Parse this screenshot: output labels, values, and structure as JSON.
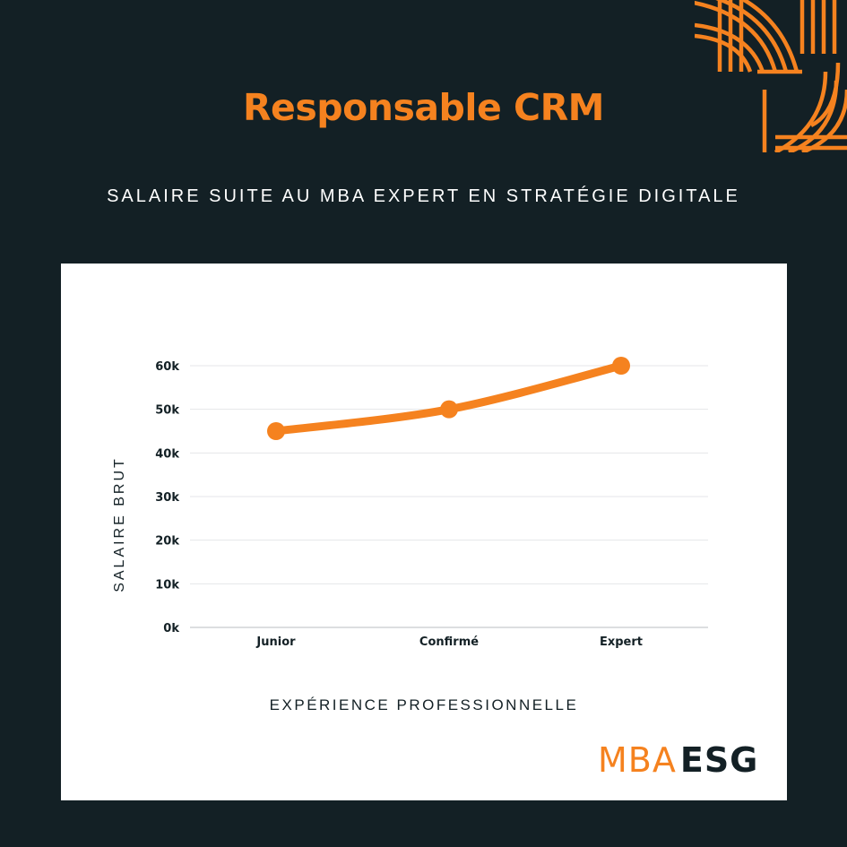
{
  "colors": {
    "background": "#132025",
    "accent": "#f5821f",
    "card": "#ffffff",
    "text_dark": "#132025",
    "grid": "#e4e6e8"
  },
  "header": {
    "title": "Responsable CRM",
    "subtitle": "SALAIRE SUITE AU MBA EXPERT EN STRATÉGIE DIGITALE"
  },
  "decoration": {
    "icon": "striped-arc-pattern"
  },
  "chart_data": {
    "type": "line",
    "title": "Responsable CRM",
    "subtitle": "SALAIRE SUITE AU MBA EXPERT EN STRATÉGIE DIGITALE",
    "xlabel": "EXPÉRIENCE PROFESSIONNELLE",
    "ylabel": "SALAIRE BRUT",
    "categories": [
      "Junior",
      "Confirmé",
      "Expert"
    ],
    "series": [
      {
        "values": [
          45000,
          50000,
          60000
        ],
        "color": "#f5821f"
      }
    ],
    "ylim": [
      0,
      60000
    ],
    "yticks": [
      0,
      10000,
      20000,
      30000,
      40000,
      50000,
      60000
    ],
    "ytick_labels": [
      "0k",
      "10k",
      "20k",
      "30k",
      "40k",
      "50k",
      "60k"
    ],
    "grid": true,
    "legend": "none"
  },
  "logo": {
    "part1": "MBA",
    "part2": "ESG"
  }
}
